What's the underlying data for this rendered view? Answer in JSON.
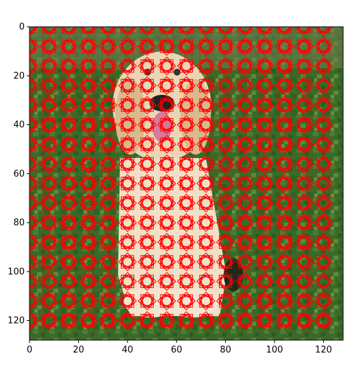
{
  "chart_data": {
    "type": "heatmap",
    "title": "",
    "xlabel": "",
    "ylabel": "",
    "xlim": [
      0,
      128
    ],
    "ylim": [
      128,
      0
    ],
    "y_axis_inverted": true,
    "x_ticks": [
      0,
      20,
      40,
      60,
      80,
      100,
      120
    ],
    "y_ticks": [
      0,
      20,
      40,
      60,
      80,
      100,
      120
    ],
    "x_tick_labels": [
      "0",
      "20",
      "40",
      "60",
      "80",
      "100",
      "120"
    ],
    "y_tick_labels": [
      "0",
      "20",
      "40",
      "60",
      "80",
      "100",
      "120"
    ],
    "image": {
      "subject": "golden retriever sitting on grass",
      "pixel_resolution": [
        128,
        128
      ],
      "background_color": "#3f6b2a",
      "subject_color": "#e8d2b0"
    },
    "overlay": {
      "marker": "stacked hollow squares (rotated)",
      "color": "#ff0000",
      "grid_x": [
        0,
        8,
        16,
        24,
        32,
        40,
        48,
        56,
        64,
        72,
        80,
        88,
        96,
        104,
        112,
        120
      ],
      "grid_y": [
        0,
        8,
        16,
        24,
        32,
        40,
        48,
        56,
        64,
        72,
        80,
        88,
        96,
        104,
        112,
        120
      ],
      "marker_size_data": [
        4,
        3,
        2.5
      ]
    },
    "grid": false,
    "legend": "none"
  }
}
